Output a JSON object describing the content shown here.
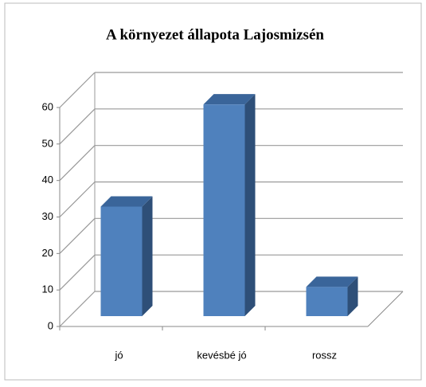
{
  "chart_data": {
    "type": "bar3d",
    "title": "A környezet állapota Lajosmizsén",
    "categories": [
      "jó",
      "kevésbé jó",
      "rossz"
    ],
    "values": [
      30,
      58,
      8
    ],
    "color": "#4f81bd",
    "ylim": [
      0,
      60
    ],
    "yticks": [
      0,
      10,
      20,
      30,
      40,
      50,
      60
    ],
    "grid": true
  }
}
